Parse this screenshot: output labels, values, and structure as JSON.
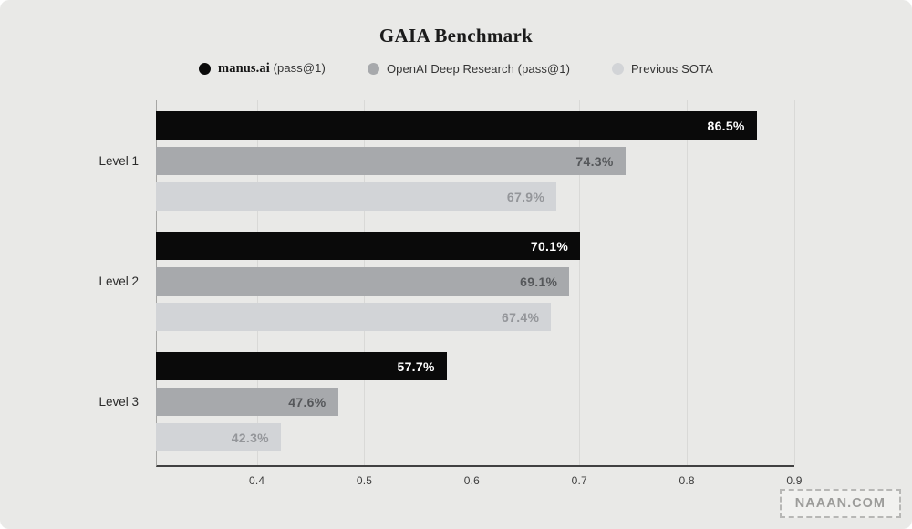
{
  "title": "GAIA Benchmark",
  "legend": {
    "items": [
      {
        "label_serif": "manus.ai",
        "label_suffix": "(pass@1)",
        "color": "#0a0a0a"
      },
      {
        "label": "OpenAI Deep Research (pass@1)",
        "color": "#a7a9ac"
      },
      {
        "label": "Previous SOTA",
        "color": "#d2d4d7"
      }
    ]
  },
  "chart_data": {
    "type": "bar",
    "orientation": "horizontal",
    "title": "GAIA Benchmark",
    "categories": [
      "Level 1",
      "Level 2",
      "Level 3"
    ],
    "series": [
      {
        "name": "manus.ai (pass@1)",
        "values": [
          86.5,
          70.1,
          57.7
        ],
        "labels": [
          "86.5%",
          "70.1%",
          "57.7%"
        ],
        "color": "#0a0a0a",
        "label_color": "#ffffff"
      },
      {
        "name": "OpenAI Deep Research (pass@1)",
        "values": [
          74.3,
          69.1,
          47.6
        ],
        "labels": [
          "74.3%",
          "69.1%",
          "47.6%"
        ],
        "color": "#a7a9ac",
        "label_color": "#55575a"
      },
      {
        "name": "Previous SOTA",
        "values": [
          67.9,
          67.4,
          42.3
        ],
        "labels": [
          "67.9%",
          "67.4%",
          "42.3%"
        ],
        "color": "#d2d4d7",
        "label_color": "#94969a"
      }
    ],
    "xlabel": "",
    "ylabel": "",
    "x_tick_labels": [
      "0.4",
      "0.5",
      "0.6",
      "0.7",
      "0.8",
      "0.9"
    ],
    "x_ticks": [
      0.4,
      0.5,
      0.6,
      0.7,
      0.8,
      0.9
    ],
    "xlim": [
      0.307,
      0.9
    ],
    "values_unit": "percent",
    "grid": "vertical",
    "legend_position": "top"
  },
  "watermark": "NAAAN.COM"
}
